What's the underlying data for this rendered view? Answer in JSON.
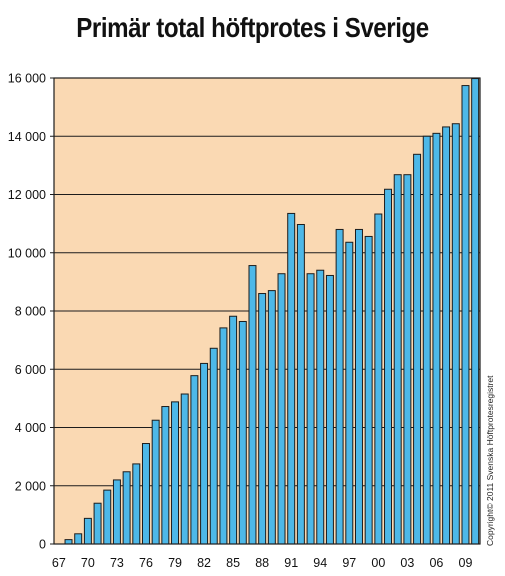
{
  "chart_data": {
    "type": "bar",
    "title": "Primär total höftprotes i Sverige",
    "xlabel": "",
    "ylabel": "",
    "ylim": [
      0,
      16000
    ],
    "y_ticks": [
      0,
      2000,
      4000,
      6000,
      8000,
      10000,
      12000,
      14000,
      16000
    ],
    "y_tick_labels": [
      "0",
      "2 000",
      "4 000",
      "6 000",
      "8 000",
      "10 000",
      "12 000",
      "14 000",
      "16 000"
    ],
    "categories": [
      1967,
      1968,
      1969,
      1970,
      1971,
      1972,
      1973,
      1974,
      1975,
      1976,
      1977,
      1978,
      1979,
      1980,
      1981,
      1982,
      1983,
      1984,
      1985,
      1986,
      1987,
      1988,
      1989,
      1990,
      1991,
      1992,
      1993,
      1994,
      1995,
      1996,
      1997,
      1998,
      1999,
      2000,
      2001,
      2002,
      2003,
      2004,
      2005,
      2006,
      2007,
      2008,
      2009,
      2010
    ],
    "x_tick_labels": [
      {
        "index": 0,
        "label": "67"
      },
      {
        "index": 3,
        "label": "70"
      },
      {
        "index": 6,
        "label": "73"
      },
      {
        "index": 9,
        "label": "76"
      },
      {
        "index": 12,
        "label": "79"
      },
      {
        "index": 15,
        "label": "82"
      },
      {
        "index": 18,
        "label": "85"
      },
      {
        "index": 21,
        "label": "88"
      },
      {
        "index": 24,
        "label": "91"
      },
      {
        "index": 27,
        "label": "94"
      },
      {
        "index": 30,
        "label": "97"
      },
      {
        "index": 33,
        "label": "00"
      },
      {
        "index": 36,
        "label": "03"
      },
      {
        "index": 39,
        "label": "06"
      },
      {
        "index": 42,
        "label": "09"
      }
    ],
    "values": [
      0,
      150,
      350,
      880,
      1400,
      1850,
      2200,
      2480,
      2750,
      3450,
      4250,
      4720,
      4880,
      5150,
      5780,
      6200,
      6720,
      7420,
      7820,
      7640,
      9560,
      8600,
      8700,
      9280,
      11350,
      10970,
      9280,
      9400,
      9220,
      10800,
      10360,
      10800,
      10560,
      11330,
      12180,
      12680,
      12680,
      13380,
      14000,
      14100,
      14320,
      14430,
      15740,
      15980
    ],
    "grid": true,
    "legend": "none",
    "colors": {
      "plot_background": "#fad9b3",
      "bar_fill": "#4db8e8",
      "bar_stroke": "#1c1c1c",
      "gridline": "#1c1c1c"
    }
  },
  "copyright": "Copyright© 2011 Svenska Höftprotesregistret"
}
